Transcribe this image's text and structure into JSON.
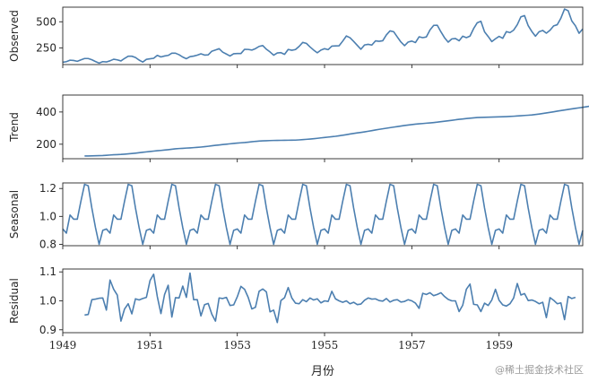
{
  "chart_data": {
    "type": "line",
    "xlabel": "月份",
    "x_start": "1949-01",
    "x_end": "1960-12",
    "x_ticks": [
      "1949",
      "1951",
      "1953",
      "1955",
      "1957",
      "1959"
    ],
    "line_color": "#4c7fb0",
    "panels": [
      {
        "name": "observed",
        "ylabel": "Observed",
        "ylim": [
          90,
          640
        ],
        "yticks": [
          250,
          500
        ],
        "values": [
          112,
          118,
          132,
          129,
          121,
          135,
          148,
          148,
          136,
          119,
          104,
          118,
          115,
          126,
          141,
          135,
          125,
          149,
          170,
          170,
          158,
          133,
          114,
          140,
          145,
          150,
          178,
          163,
          172,
          178,
          199,
          199,
          184,
          162,
          146,
          166,
          171,
          180,
          193,
          181,
          183,
          218,
          230,
          242,
          209,
          191,
          172,
          194,
          196,
          196,
          236,
          235,
          229,
          243,
          264,
          272,
          237,
          211,
          180,
          201,
          204,
          188,
          235,
          227,
          234,
          264,
          302,
          293,
          259,
          229,
          203,
          229,
          242,
          233,
          267,
          269,
          270,
          315,
          364,
          347,
          312,
          274,
          237,
          278,
          284,
          277,
          317,
          313,
          318,
          374,
          413,
          405,
          355,
          306,
          271,
          306,
          315,
          301,
          356,
          348,
          355,
          422,
          465,
          467,
          404,
          347,
          305,
          336,
          340,
          318,
          362,
          348,
          363,
          435,
          491,
          505,
          404,
          359,
          310,
          337,
          360,
          342,
          406,
          396,
          420,
          472,
          548,
          559,
          463,
          407,
          362,
          405,
          417,
          391,
          419,
          461,
          472,
          535,
          622,
          606,
          508,
          461,
          390,
          432
        ]
      },
      {
        "name": "trend",
        "ylabel": "Trend",
        "ylim": [
          110,
          505
        ],
        "yticks": [
          200,
          400
        ],
        "values": [
          null,
          null,
          null,
          null,
          null,
          null,
          126.8,
          127.3,
          127.9,
          128.6,
          129.0,
          129.8,
          131.3,
          133.0,
          134.6,
          135.6,
          136.7,
          138.3,
          140.0,
          142.1,
          144.5,
          147.2,
          150.0,
          152.5,
          155.0,
          157.3,
          159.6,
          161.4,
          163.7,
          166.0,
          168.7,
          171.3,
          173.2,
          174.6,
          176.1,
          177.4,
          178.9,
          180.5,
          182.3,
          184.6,
          187.2,
          190.3,
          193.0,
          195.4,
          198.0,
          200.3,
          202.5,
          204.8,
          207.0,
          208.8,
          210.5,
          212.8,
          215.3,
          217.7,
          219.5,
          220.7,
          221.6,
          222.6,
          223.4,
          223.8,
          224.1,
          224.4,
          224.7,
          224.9,
          225.5,
          226.8,
          228.4,
          230.3,
          232.3,
          234.3,
          236.6,
          239.3,
          241.9,
          244.3,
          246.7,
          249.1,
          252.2,
          255.8,
          259.4,
          263.3,
          266.9,
          270.1,
          273.1,
          276.6,
          280.3,
          284.2,
          288.3,
          292.1,
          295.6,
          299.1,
          302.7,
          306.0,
          309.4,
          312.9,
          316.4,
          319.2,
          321.8,
          324.3,
          326.4,
          328.4,
          330.4,
          332.3,
          334.5,
          336.8,
          339.7,
          342.5,
          345.4,
          348.3,
          351.4,
          354.3,
          356.7,
          359.2,
          361.5,
          363.5,
          365.3,
          366.3,
          367.1,
          367.8,
          368.6,
          369.3,
          369.9,
          370.5,
          371.2,
          372.3,
          373.6,
          375.3,
          376.8,
          378.4,
          379.9,
          381.6,
          384.2,
          387.3,
          390.6,
          394.0,
          397.5,
          401.2,
          405.0,
          408.6,
          412.1,
          415.7,
          419.3,
          422.6,
          425.8,
          429.0,
          432.4,
          436.1,
          440.3,
          444.4,
          448.7,
          453.3,
          457.7,
          461.3,
          463.6,
          466.0,
          468.7,
          472.9,
          475.7,
          478.1,
          null,
          null,
          null,
          null,
          null,
          null
        ]
      },
      {
        "name": "seasonal",
        "ylabel": "Seasonal",
        "ylim": [
          0.79,
          1.24
        ],
        "yticks": [
          0.8,
          1.0,
          1.2
        ],
        "values": [
          0.91,
          0.88,
          1.01,
          0.98,
          0.98,
          1.11,
          1.23,
          1.22,
          1.06,
          0.92,
          0.8,
          0.9
        ]
      },
      {
        "name": "residual",
        "ylabel": "Residual",
        "ylim": [
          0.89,
          1.11
        ],
        "yticks": [
          0.9,
          1.0,
          1.1
        ],
        "values": [
          null,
          null,
          null,
          null,
          null,
          null,
          0.951,
          0.953,
          1.004,
          1.006,
          1.009,
          1.01,
          0.968,
          1.072,
          1.04,
          1.02,
          0.93,
          0.972,
          0.99,
          0.955,
          1.007,
          1.003,
          1.008,
          1.012,
          1.07,
          1.092,
          1.015,
          0.956,
          1.022,
          1.054,
          0.944,
          1.011,
          1.01,
          1.051,
          1.012,
          1.096,
          1.004,
          1.004,
          0.948,
          0.987,
          0.991,
          0.954,
          0.93,
          1.01,
          1.008,
          1.012,
          0.984,
          0.986,
          1.014,
          1.05,
          1.04,
          1.012,
          0.972,
          0.978,
          1.033,
          1.041,
          1.031,
          0.962,
          0.968,
          0.925,
          1.001,
          1.011,
          1.046,
          1.01,
          0.992,
          0.99,
          1.004,
          0.997,
          1.01,
          1.003,
          1.007,
          0.993,
          1.0,
          0.998,
          1.033,
          1.007,
          1.0,
          0.995,
          1.0,
          0.99,
          0.995,
          0.987,
          0.989,
          1.002,
          1.01,
          1.006,
          1.007,
          1.001,
          0.999,
          1.008,
          0.996,
          1.002,
          1.004,
          0.996,
          0.998,
          1.004,
          1.0,
          0.992,
          0.974,
          1.026,
          1.022,
          1.028,
          1.018,
          1.022,
          1.028,
          1.015,
          1.005,
          1.0,
          1.0,
          0.963,
          0.985,
          1.04,
          1.058,
          0.988,
          0.986,
          0.963,
          0.992,
          0.984,
          1.003,
          1.04,
          1.002,
          0.986,
          0.982,
          0.99,
          1.01,
          1.06,
          1.02,
          1.025,
          1.001,
          1.003,
          0.998,
          0.99,
          0.995,
          0.942,
          1.011,
          1.002,
          0.99,
          0.993,
          0.935,
          1.015,
          1.008,
          1.012,
          null,
          null,
          null,
          null,
          null,
          null
        ]
      }
    ]
  },
  "watermark": "@稀土掘金技术社区"
}
